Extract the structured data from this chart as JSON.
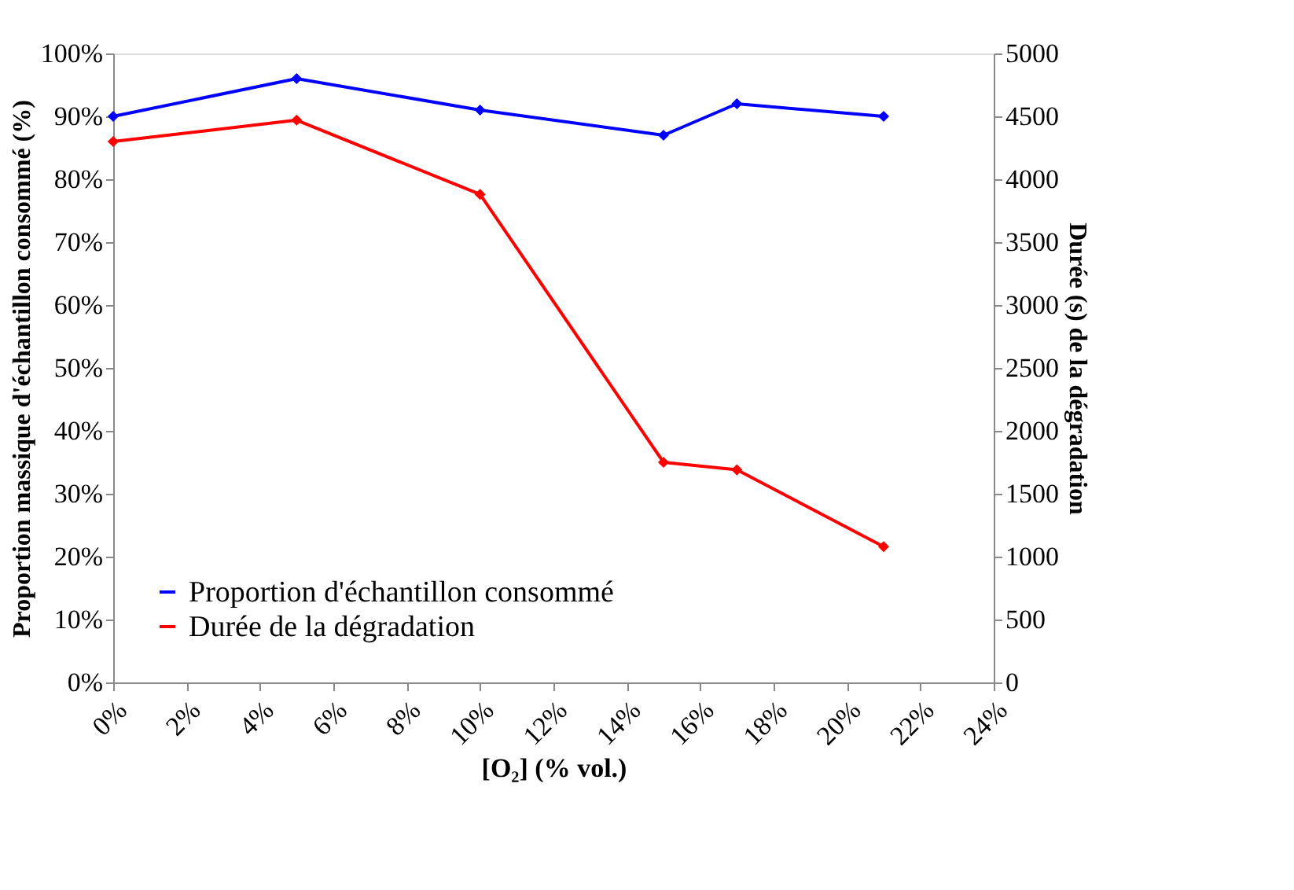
{
  "chart_data": {
    "type": "line",
    "xlabel": "[O₂] (% vol.)",
    "ylabel": "Proportion massique d'échantillon consommé (%)",
    "y2label": "Durée (s) de la dégradation",
    "x": [
      0,
      5,
      10,
      15,
      17,
      21
    ],
    "series": [
      {
        "name": "Proportion d'échantillon consommé",
        "color": "#0000ff",
        "values": [
          90,
          96,
          91,
          87,
          92,
          90
        ]
      },
      {
        "name": "Durée de la dégradation",
        "color": "#ff0000",
        "axis": "y2",
        "values": [
          4300,
          4470,
          3880,
          1750,
          1690,
          1080
        ]
      }
    ],
    "xlim": [
      0,
      24
    ],
    "xticks": [
      {
        "value": 0,
        "label": "0%"
      },
      {
        "value": 2,
        "label": "2%"
      },
      {
        "value": 4,
        "label": "4%"
      },
      {
        "value": 6,
        "label": "6%"
      },
      {
        "value": 8,
        "label": "8%"
      },
      {
        "value": 10,
        "label": "10%"
      },
      {
        "value": 12,
        "label": "12%"
      },
      {
        "value": 14,
        "label": "14%"
      },
      {
        "value": 16,
        "label": "16%"
      },
      {
        "value": 18,
        "label": "18%"
      },
      {
        "value": 20,
        "label": "20%"
      },
      {
        "value": 22,
        "label": "22%"
      },
      {
        "value": 24,
        "label": "24%"
      }
    ],
    "ylim": [
      0,
      100
    ],
    "yticks": [
      {
        "value": 0,
        "label": "0%"
      },
      {
        "value": 10,
        "label": "10%"
      },
      {
        "value": 20,
        "label": "20%"
      },
      {
        "value": 30,
        "label": "30%"
      },
      {
        "value": 40,
        "label": "40%"
      },
      {
        "value": 50,
        "label": "50%"
      },
      {
        "value": 60,
        "label": "60%"
      },
      {
        "value": 70,
        "label": "70%"
      },
      {
        "value": 80,
        "label": "80%"
      },
      {
        "value": 90,
        "label": "90%"
      },
      {
        "value": 100,
        "label": "100%"
      }
    ],
    "y2lim": [
      0,
      5000
    ],
    "y2ticks": [
      0,
      500,
      1000,
      1500,
      2000,
      2500,
      3000,
      3500,
      4000,
      4500,
      5000
    ],
    "legend": "bottom left",
    "marker": "diamond",
    "line_style": "solid",
    "grid": false
  }
}
